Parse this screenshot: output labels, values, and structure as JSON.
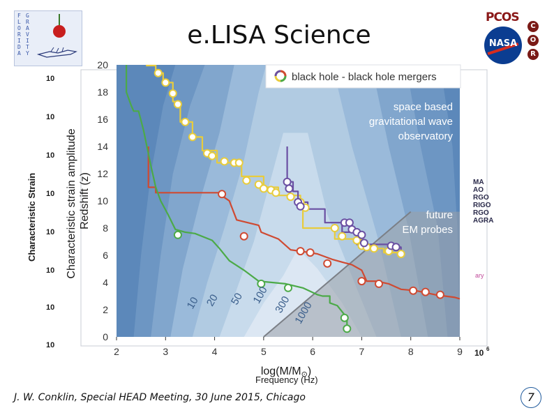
{
  "slide": {
    "title": "e.LISA Science",
    "footer": "J. W. Conklin, Special HEAD Meeting, 30 June 2015, Chicago",
    "page_number": "7"
  },
  "logos": {
    "uf_left": "FLORIDA",
    "uf_right": "GRAVITY",
    "pcos": "PCOS",
    "nasa": "NASA",
    "cor": [
      "C",
      "O",
      "R"
    ]
  },
  "background_plot": {
    "y_label": "Characteristic Strain",
    "y_ticks": [
      "10",
      "10",
      "10",
      "10",
      "10",
      "10",
      "10",
      "10"
    ],
    "x_label_fragment": "Frequency (Hz)",
    "x_tick_right": "10",
    "x_tick_right_exp": "6",
    "legend_fragments": [
      "MA",
      "AO",
      "RGO",
      "RIGO",
      "RGO",
      "AGRA"
    ],
    "extra_fragment": "ary"
  },
  "chart_data": {
    "type": "line",
    "title": "",
    "xlabel": "log(M/M",
    "xlabel_sub": "⊙",
    "xlabel_close": ")",
    "ylabel_top": "Characteristic strain amplitude",
    "ylabel": "Redshift (z)",
    "xlim": [
      2,
      9
    ],
    "ylim": [
      0,
      20
    ],
    "x_ticks": [
      "2",
      "3",
      "4",
      "5",
      "6",
      "7",
      "8",
      "9"
    ],
    "y_ticks": [
      "0",
      "2",
      "4",
      "6",
      "8",
      "10",
      "12",
      "14",
      "16",
      "18",
      "20"
    ],
    "legend": "black hole - black hole mergers",
    "annotations": {
      "observatory": [
        "space based",
        "gravitational wave",
        "observatory"
      ],
      "em_probes": [
        "future",
        "EM probes"
      ],
      "contours": [
        "10",
        "20",
        "50",
        "100",
        "300",
        "1000"
      ]
    },
    "colors": {
      "background": "#5c88ba",
      "bands": [
        "#6e97c3",
        "#83a7ce",
        "#9bbbda",
        "#b2cbe3",
        "#c9dbec",
        "#dde8f3"
      ],
      "em_region": "#9aa0a8",
      "yellow": "#e8cc3c",
      "purple": "#6a4fa2",
      "red": "#cf4a32",
      "green": "#4caa48",
      "marker_fill": "#ffffff"
    },
    "series": [
      {
        "name": "yellow",
        "color": "#e8cc3c",
        "line": [
          [
            2.6,
            19.95
          ],
          [
            2.8,
            19.95
          ],
          [
            2.8,
            19.4
          ],
          [
            2.95,
            19.4
          ],
          [
            2.95,
            18.7
          ],
          [
            3.15,
            18.7
          ],
          [
            3.15,
            17.3
          ],
          [
            3.3,
            17.3
          ],
          [
            3.3,
            15.8
          ],
          [
            3.55,
            15.8
          ],
          [
            3.55,
            14.7
          ],
          [
            3.75,
            14.7
          ],
          [
            3.75,
            13.7
          ],
          [
            4.05,
            13.7
          ],
          [
            4.05,
            12.8
          ],
          [
            4.55,
            12.8
          ],
          [
            4.55,
            11.8
          ],
          [
            5.0,
            11.8
          ],
          [
            5.0,
            11.0
          ],
          [
            5.3,
            11.0
          ],
          [
            5.3,
            10.4
          ],
          [
            5.75,
            10.4
          ],
          [
            5.75,
            9.6
          ],
          [
            5.8,
            9.6
          ],
          [
            5.8,
            8.0
          ],
          [
            6.45,
            8.0
          ],
          [
            6.45,
            7.2
          ],
          [
            7.0,
            7.2
          ],
          [
            7.0,
            6.5
          ],
          [
            7.45,
            6.5
          ],
          [
            7.45,
            6.2
          ],
          [
            7.8,
            6.2
          ],
          [
            7.8,
            5.9
          ]
        ],
        "markers": [
          [
            2.85,
            19.4
          ],
          [
            3.0,
            18.7
          ],
          [
            3.15,
            17.9
          ],
          [
            3.25,
            17.1
          ],
          [
            3.4,
            15.8
          ],
          [
            3.55,
            14.7
          ],
          [
            3.85,
            13.5
          ],
          [
            3.95,
            13.3
          ],
          [
            4.2,
            12.9
          ],
          [
            4.4,
            12.8
          ],
          [
            4.5,
            12.8
          ],
          [
            4.65,
            11.5
          ],
          [
            4.9,
            11.2
          ],
          [
            5.0,
            10.9
          ],
          [
            5.15,
            10.8
          ],
          [
            5.25,
            10.6
          ],
          [
            5.55,
            10.3
          ],
          [
            5.75,
            9.9
          ],
          [
            5.85,
            9.5
          ],
          [
            6.45,
            8.0
          ],
          [
            6.6,
            7.4
          ],
          [
            6.9,
            7.1
          ],
          [
            7.0,
            6.7
          ],
          [
            7.1,
            6.6
          ],
          [
            7.25,
            6.5
          ],
          [
            7.55,
            6.3
          ],
          [
            7.8,
            6.1
          ]
        ]
      },
      {
        "name": "purple",
        "color": "#6a4fa2",
        "line": [
          [
            5.48,
            14.0
          ],
          [
            5.48,
            11.4
          ],
          [
            5.6,
            11.4
          ],
          [
            5.6,
            10.7
          ],
          [
            5.7,
            10.7
          ],
          [
            5.7,
            9.9
          ],
          [
            5.9,
            9.9
          ],
          [
            5.9,
            9.4
          ],
          [
            6.25,
            9.4
          ],
          [
            6.25,
            8.4
          ],
          [
            6.6,
            8.4
          ],
          [
            6.6,
            7.7
          ],
          [
            6.9,
            7.7
          ],
          [
            6.9,
            6.8
          ],
          [
            7.6,
            6.8
          ],
          [
            7.6,
            6.6
          ],
          [
            7.8,
            6.6
          ],
          [
            7.8,
            6.4
          ]
        ],
        "markers": [
          [
            5.48,
            11.4
          ],
          [
            5.52,
            10.9
          ],
          [
            5.7,
            9.9
          ],
          [
            5.75,
            9.6
          ],
          [
            6.65,
            8.4
          ],
          [
            6.75,
            8.4
          ],
          [
            6.8,
            7.9
          ],
          [
            6.9,
            7.7
          ],
          [
            7.0,
            7.5
          ],
          [
            7.05,
            6.9
          ],
          [
            7.6,
            6.7
          ],
          [
            7.7,
            6.6
          ]
        ]
      },
      {
        "name": "red",
        "color": "#cf4a32",
        "line": [
          [
            2.65,
            14.0
          ],
          [
            2.65,
            11.0
          ],
          [
            2.8,
            11.0
          ],
          [
            2.8,
            10.6
          ],
          [
            4.1,
            10.6
          ],
          [
            4.1,
            10.5
          ],
          [
            4.3,
            10.0
          ],
          [
            4.45,
            8.6
          ],
          [
            4.9,
            8.2
          ],
          [
            4.95,
            7.7
          ],
          [
            5.3,
            7.2
          ],
          [
            5.55,
            6.4
          ],
          [
            5.75,
            6.3
          ],
          [
            6.1,
            6.1
          ],
          [
            6.4,
            5.7
          ],
          [
            6.6,
            5.5
          ],
          [
            6.8,
            5.3
          ],
          [
            7.0,
            4.9
          ],
          [
            7.1,
            4.1
          ],
          [
            7.3,
            4.1
          ],
          [
            7.55,
            3.9
          ],
          [
            7.8,
            3.5
          ],
          [
            8.1,
            3.4
          ],
          [
            8.5,
            3.1
          ],
          [
            8.9,
            2.9
          ],
          [
            9.0,
            2.8
          ]
        ],
        "markers": [
          [
            4.15,
            10.5
          ],
          [
            4.6,
            7.4
          ],
          [
            5.75,
            6.3
          ],
          [
            5.95,
            6.2
          ],
          [
            6.3,
            5.4
          ],
          [
            7.0,
            4.1
          ],
          [
            7.35,
            3.9
          ],
          [
            8.05,
            3.4
          ],
          [
            8.3,
            3.3
          ],
          [
            8.6,
            3.1
          ]
        ]
      },
      {
        "name": "green",
        "color": "#4caa48",
        "line": [
          [
            2.2,
            20.0
          ],
          [
            2.2,
            18.0
          ],
          [
            2.3,
            17.0
          ],
          [
            2.35,
            16.6
          ],
          [
            2.45,
            16.6
          ],
          [
            2.55,
            15.2
          ],
          [
            2.7,
            12.6
          ],
          [
            2.8,
            11.0
          ],
          [
            2.9,
            10.0
          ],
          [
            3.05,
            9.0
          ],
          [
            3.2,
            7.9
          ],
          [
            3.4,
            7.7
          ],
          [
            3.6,
            7.6
          ],
          [
            3.95,
            7.1
          ],
          [
            4.1,
            6.5
          ],
          [
            4.3,
            5.6
          ],
          [
            4.6,
            4.9
          ],
          [
            4.9,
            4.1
          ],
          [
            5.45,
            3.9
          ],
          [
            5.8,
            3.6
          ],
          [
            6.1,
            3.1
          ],
          [
            6.2,
            3.0
          ],
          [
            6.35,
            3.0
          ],
          [
            6.35,
            2.5
          ],
          [
            6.5,
            2.3
          ],
          [
            6.7,
            1.4
          ],
          [
            6.7,
            0.5
          ]
        ],
        "markers": [
          [
            3.25,
            7.5
          ],
          [
            4.95,
            3.9
          ],
          [
            5.5,
            3.6
          ],
          [
            6.65,
            1.4
          ],
          [
            6.7,
            0.6
          ]
        ]
      }
    ]
  }
}
